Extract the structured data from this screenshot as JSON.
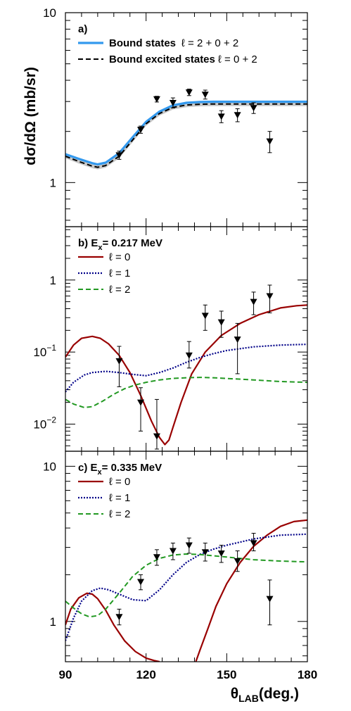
{
  "figure": {
    "ylabel": "dσ/dΩ (mb/sr)",
    "xlabel_main": "θ",
    "xlabel_sub": "LAB",
    "xlabel_suffix": "(deg.)"
  },
  "colors": {
    "blue": "#3399ee",
    "black_dash": "#000000",
    "gray_band": "#c8c8c8",
    "red": "#990000",
    "navy": "#000088",
    "green": "#229922",
    "points": "#000000"
  },
  "chart_data": [
    {
      "type": "scatter",
      "panel": "a",
      "label": "a)",
      "ylog": true,
      "xlim": [
        90,
        180
      ],
      "ylim": [
        0.55,
        10
      ],
      "yticks": [
        {
          "v": 1,
          "label": "1"
        },
        {
          "v": 10,
          "label": "10"
        }
      ],
      "legend": [
        {
          "name": "Bound states",
          "l_text": "ℓ = 2 + 0 + 2"
        },
        {
          "name": "Bound excited states",
          "l_text": "ℓ = 0 + 2"
        }
      ],
      "series": [
        {
          "name": "Bound states",
          "style": "blue",
          "x": [
            90,
            95,
            100,
            102,
            105,
            110,
            115,
            120,
            125,
            130,
            135,
            140,
            145,
            150,
            160,
            170,
            180
          ],
          "y": [
            1.47,
            1.38,
            1.3,
            1.28,
            1.31,
            1.49,
            1.85,
            2.28,
            2.62,
            2.85,
            2.95,
            2.98,
            2.99,
            2.99,
            2.99,
            2.99,
            2.99
          ]
        },
        {
          "name": "Bound excited states",
          "style": "black_dash",
          "x": [
            90,
            95,
            100,
            102,
            105,
            110,
            115,
            120,
            125,
            130,
            135,
            140,
            145,
            150,
            160,
            170,
            180
          ],
          "y": [
            1.43,
            1.33,
            1.25,
            1.23,
            1.26,
            1.43,
            1.78,
            2.22,
            2.55,
            2.77,
            2.86,
            2.89,
            2.9,
            2.9,
            2.9,
            2.9,
            2.9
          ]
        }
      ],
      "points": [
        {
          "x": 110,
          "y": 1.45,
          "err": 0.08
        },
        {
          "x": 118,
          "y": 2.05,
          "err": 0.1
        },
        {
          "x": 124,
          "y": 3.1,
          "err": 0.12
        },
        {
          "x": 130,
          "y": 2.95,
          "err": 0.2
        },
        {
          "x": 136,
          "y": 3.4,
          "err": 0.15
        },
        {
          "x": 142,
          "y": 3.3,
          "err": 0.2
        },
        {
          "x": 148,
          "y": 2.45,
          "err": 0.2
        },
        {
          "x": 154,
          "y": 2.5,
          "err": 0.22
        },
        {
          "x": 160,
          "y": 2.75,
          "err": 0.2
        },
        {
          "x": 166,
          "y": 1.75,
          "err": 0.25
        }
      ]
    },
    {
      "type": "scatter",
      "panel": "b",
      "label": "b) E",
      "label_sub": "x",
      "label_suffix": "= 0.217 MeV",
      "ylog": true,
      "xlim": [
        90,
        180
      ],
      "ylim": [
        0.0042,
        5.5
      ],
      "yticks": [
        {
          "v": 0.01,
          "base": "10",
          "exp": "−2"
        },
        {
          "v": 0.1,
          "base": "10",
          "exp": "−1"
        },
        {
          "v": 1,
          "label": "1"
        }
      ],
      "legend": [
        {
          "name": "ℓ = 0"
        },
        {
          "name": "ℓ = 1"
        },
        {
          "name": "ℓ = 2"
        }
      ],
      "series": [
        {
          "name": "ℓ = 0",
          "style": "red",
          "x": [
            90,
            93,
            96,
            100,
            103,
            106,
            110,
            114,
            118,
            122,
            125,
            127,
            128.5,
            130,
            133,
            137,
            142,
            148,
            155,
            162,
            170,
            176,
            180
          ],
          "y": [
            0.085,
            0.125,
            0.155,
            0.165,
            0.155,
            0.13,
            0.09,
            0.052,
            0.025,
            0.011,
            0.0065,
            0.0052,
            0.006,
            0.009,
            0.02,
            0.05,
            0.1,
            0.17,
            0.25,
            0.33,
            0.41,
            0.44,
            0.45
          ]
        },
        {
          "name": "ℓ = 1",
          "style": "navy",
          "x": [
            90,
            93,
            97,
            100,
            105,
            110,
            115,
            120,
            125,
            130,
            135,
            140,
            145,
            150,
            160,
            170,
            180
          ],
          "y": [
            0.028,
            0.038,
            0.048,
            0.052,
            0.054,
            0.052,
            0.049,
            0.047,
            0.052,
            0.06,
            0.072,
            0.084,
            0.095,
            0.105,
            0.118,
            0.125,
            0.128
          ]
        },
        {
          "name": "ℓ = 2",
          "style": "green",
          "x": [
            90,
            93,
            97,
            100,
            104,
            108,
            112,
            116,
            120,
            125,
            130,
            135,
            140,
            145,
            150,
            160,
            170,
            180
          ],
          "y": [
            0.022,
            0.019,
            0.017,
            0.0175,
            0.021,
            0.026,
            0.031,
            0.035,
            0.038,
            0.041,
            0.043,
            0.044,
            0.0445,
            0.044,
            0.043,
            0.041,
            0.039,
            0.038
          ]
        }
      ],
      "points": [
        {
          "x": 110,
          "y": 0.075,
          "up": 0.12,
          "down": 0.033
        },
        {
          "x": 118,
          "y": 0.02,
          "up": 0.032,
          "down": 0.008
        },
        {
          "x": 124,
          "y": 0.0068,
          "up": 0.022,
          "down": 0.0045
        },
        {
          "x": 136,
          "y": 0.09,
          "up": 0.14,
          "down": 0.06
        },
        {
          "x": 142,
          "y": 0.32,
          "up": 0.45,
          "down": 0.2
        },
        {
          "x": 148,
          "y": 0.26,
          "up": 0.37,
          "down": 0.16
        },
        {
          "x": 154,
          "y": 0.15,
          "up": 0.25,
          "down": 0.05
        },
        {
          "x": 160,
          "y": 0.5,
          "up": 0.68,
          "down": 0.33
        },
        {
          "x": 166,
          "y": 0.6,
          "up": 0.85,
          "down": 0.35
        }
      ]
    },
    {
      "type": "scatter",
      "panel": "c",
      "label": "c) E",
      "label_sub": "x",
      "label_suffix": "= 0.335 MeV",
      "ylog": true,
      "xlim": [
        90,
        180
      ],
      "ylim": [
        0.55,
        12.5
      ],
      "yticks": [
        {
          "v": 1,
          "label": "1"
        },
        {
          "v": 10,
          "label": "10"
        }
      ],
      "legend": [
        {
          "name": "ℓ = 0"
        },
        {
          "name": "ℓ = 1"
        },
        {
          "name": "ℓ = 2"
        }
      ],
      "series": [
        {
          "name": "ℓ = 0",
          "style": "red",
          "x": [
            90,
            92,
            95,
            98,
            100,
            102,
            105,
            108,
            112,
            116,
            120,
            123,
            125
          ],
          "y": [
            0.95,
            1.2,
            1.42,
            1.52,
            1.5,
            1.4,
            1.18,
            0.95,
            0.75,
            0.64,
            0.58,
            0.56,
            0.55
          ],
          "segment": 1
        },
        {
          "name": "ℓ = 0",
          "style": "red",
          "x": [
            138.5,
            140,
            143,
            146,
            150,
            155,
            160,
            165,
            170,
            175,
            180
          ],
          "y": [
            0.55,
            0.65,
            0.9,
            1.25,
            1.75,
            2.4,
            3.05,
            3.6,
            4.1,
            4.4,
            4.5
          ],
          "segment": 2
        },
        {
          "name": "ℓ = 1",
          "style": "navy",
          "x": [
            90,
            93,
            96,
            100,
            103,
            106,
            110,
            115,
            120,
            125,
            130,
            135,
            140,
            145,
            150,
            160,
            170,
            180
          ],
          "y": [
            0.75,
            1.05,
            1.35,
            1.58,
            1.64,
            1.6,
            1.5,
            1.38,
            1.36,
            1.6,
            2.0,
            2.4,
            2.7,
            2.92,
            3.1,
            3.4,
            3.6,
            3.65
          ]
        },
        {
          "name": "ℓ = 2",
          "style": "green",
          "x": [
            90,
            93,
            96,
            99,
            102,
            105,
            110,
            115,
            120,
            125,
            130,
            135,
            140,
            145,
            150,
            155,
            160,
            170,
            180
          ],
          "y": [
            1.35,
            1.22,
            1.12,
            1.07,
            1.09,
            1.2,
            1.52,
            1.95,
            2.3,
            2.55,
            2.68,
            2.72,
            2.7,
            2.65,
            2.6,
            2.55,
            2.5,
            2.45,
            2.42
          ]
        }
      ],
      "points": [
        {
          "x": 110,
          "y": 1.07,
          "up": 1.2,
          "down": 0.95
        },
        {
          "x": 118,
          "y": 1.8,
          "up": 2.0,
          "down": 1.6
        },
        {
          "x": 124,
          "y": 2.6,
          "up": 2.9,
          "down": 2.3
        },
        {
          "x": 130,
          "y": 2.85,
          "up": 3.2,
          "down": 2.5
        },
        {
          "x": 136,
          "y": 3.1,
          "up": 3.45,
          "down": 2.75
        },
        {
          "x": 142,
          "y": 2.8,
          "up": 3.2,
          "down": 2.45
        },
        {
          "x": 148,
          "y": 2.75,
          "up": 3.1,
          "down": 2.4
        },
        {
          "x": 154,
          "y": 2.45,
          "up": 2.85,
          "down": 2.1
        },
        {
          "x": 160,
          "y": 3.2,
          "up": 3.7,
          "down": 2.85
        },
        {
          "x": 166,
          "y": 1.4,
          "up": 1.85,
          "down": 0.95
        }
      ],
      "xticks": [
        {
          "v": 90,
          "label": "90"
        },
        {
          "v": 120,
          "label": "120"
        },
        {
          "v": 150,
          "label": "150"
        },
        {
          "v": 180,
          "label": "180"
        }
      ]
    }
  ]
}
